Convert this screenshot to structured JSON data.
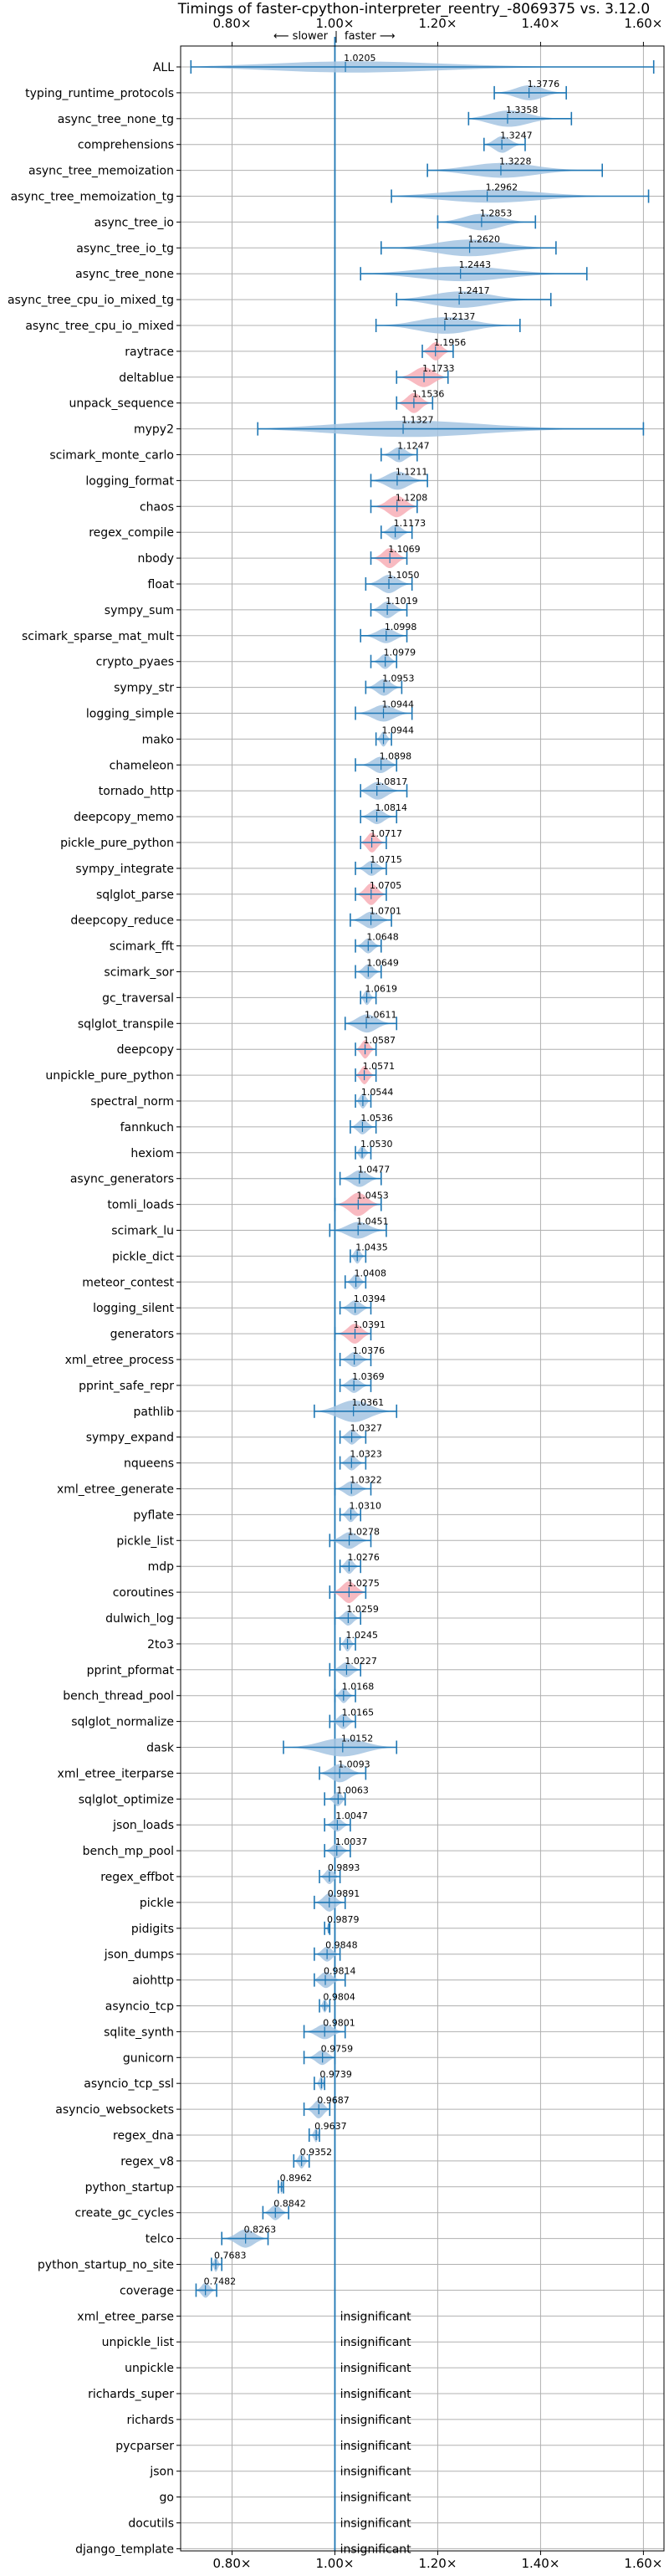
{
  "chart_data": {
    "type": "violin",
    "title": "Timings of faster-cpython-interpreter_reentry_-8069375 vs. 3.12.0",
    "direction_labels": {
      "slower": "⟵ slower",
      "faster": "faster ⟶"
    },
    "xlim": [
      0.7,
      1.64
    ],
    "x_ticks": [
      0.8,
      1.0,
      1.2,
      1.4,
      1.6
    ],
    "x_tick_labels": [
      "0.80×",
      "1.00×",
      "1.20×",
      "1.40×",
      "1.60×"
    ],
    "reference_line": 1.0,
    "grid": true,
    "colors": {
      "normal": "#a4c4e2",
      "highlight": "#f7aeb6",
      "line": "#1f77b4"
    },
    "insignificant_label": "insignificant",
    "benchmarks": [
      {
        "name": "ALL",
        "value": 1.0205,
        "min": 0.72,
        "max": 1.62,
        "w": 0.3
      },
      {
        "name": "typing_runtime_protocols",
        "value": 1.3776,
        "min": 1.31,
        "max": 1.45,
        "w": 0.5
      },
      {
        "name": "async_tree_none_tg",
        "value": 1.3358,
        "min": 1.26,
        "max": 1.46,
        "w": 0.6
      },
      {
        "name": "comprehensions",
        "value": 1.3247,
        "min": 1.29,
        "max": 1.37,
        "w": 0.6
      },
      {
        "name": "async_tree_memoization",
        "value": 1.3228,
        "min": 1.18,
        "max": 1.52,
        "w": 0.5
      },
      {
        "name": "async_tree_memoization_tg",
        "value": 1.2962,
        "min": 1.11,
        "max": 1.61,
        "w": 0.4
      },
      {
        "name": "async_tree_io",
        "value": 1.2853,
        "min": 1.2,
        "max": 1.39,
        "w": 0.6
      },
      {
        "name": "async_tree_io_tg",
        "value": 1.262,
        "min": 1.09,
        "max": 1.43,
        "w": 0.6
      },
      {
        "name": "async_tree_none",
        "value": 1.2443,
        "min": 1.05,
        "max": 1.49,
        "w": 0.5
      },
      {
        "name": "async_tree_cpu_io_mixed_tg",
        "value": 1.2417,
        "min": 1.12,
        "max": 1.42,
        "w": 0.6
      },
      {
        "name": "async_tree_cpu_io_mixed",
        "value": 1.2137,
        "min": 1.08,
        "max": 1.36,
        "w": 0.6
      },
      {
        "name": "raytrace",
        "value": 1.1956,
        "min": 1.17,
        "max": 1.23,
        "w": 0.7,
        "hl": true
      },
      {
        "name": "deltablue",
        "value": 1.1733,
        "min": 1.12,
        "max": 1.22,
        "w": 0.8,
        "hl": true
      },
      {
        "name": "unpack_sequence",
        "value": 1.1536,
        "min": 1.12,
        "max": 1.19,
        "w": 0.8,
        "hl": true
      },
      {
        "name": "mypy2",
        "value": 1.1327,
        "min": 0.85,
        "max": 1.6,
        "w": 0.6
      },
      {
        "name": "scimark_monte_carlo",
        "value": 1.1247,
        "min": 1.09,
        "max": 1.16,
        "w": 0.5
      },
      {
        "name": "logging_format",
        "value": 1.1211,
        "min": 1.07,
        "max": 1.18,
        "w": 0.7
      },
      {
        "name": "chaos",
        "value": 1.1208,
        "min": 1.07,
        "max": 1.16,
        "w": 0.9,
        "hl": true
      },
      {
        "name": "regex_compile",
        "value": 1.1173,
        "min": 1.09,
        "max": 1.15,
        "w": 0.5
      },
      {
        "name": "nbody",
        "value": 1.1069,
        "min": 1.07,
        "max": 1.14,
        "w": 0.8,
        "hl": true
      },
      {
        "name": "float",
        "value": 1.105,
        "min": 1.06,
        "max": 1.15,
        "w": 0.7
      },
      {
        "name": "sympy_sum",
        "value": 1.1019,
        "min": 1.07,
        "max": 1.14,
        "w": 0.6
      },
      {
        "name": "scimark_sparse_mat_mult",
        "value": 1.0998,
        "min": 1.05,
        "max": 1.14,
        "w": 0.5
      },
      {
        "name": "crypto_pyaes",
        "value": 1.0979,
        "min": 1.07,
        "max": 1.12,
        "w": 0.5
      },
      {
        "name": "sympy_str",
        "value": 1.0953,
        "min": 1.06,
        "max": 1.13,
        "w": 0.6
      },
      {
        "name": "logging_simple",
        "value": 1.0944,
        "min": 1.04,
        "max": 1.15,
        "w": 0.6
      },
      {
        "name": "mako",
        "value": 1.0944,
        "min": 1.08,
        "max": 1.11,
        "w": 0.5
      },
      {
        "name": "chameleon",
        "value": 1.0898,
        "min": 1.04,
        "max": 1.12,
        "w": 0.6
      },
      {
        "name": "tornado_http",
        "value": 1.0817,
        "min": 1.05,
        "max": 1.14,
        "w": 0.7
      },
      {
        "name": "deepcopy_memo",
        "value": 1.0814,
        "min": 1.05,
        "max": 1.12,
        "w": 0.5
      },
      {
        "name": "pickle_pure_python",
        "value": 1.0717,
        "min": 1.05,
        "max": 1.1,
        "w": 0.8,
        "hl": true
      },
      {
        "name": "sympy_integrate",
        "value": 1.0715,
        "min": 1.04,
        "max": 1.1,
        "w": 0.5
      },
      {
        "name": "sqlglot_parse",
        "value": 1.0705,
        "min": 1.04,
        "max": 1.1,
        "w": 0.9,
        "hl": true
      },
      {
        "name": "deepcopy_reduce",
        "value": 1.0701,
        "min": 1.03,
        "max": 1.11,
        "w": 0.6
      },
      {
        "name": "scimark_fft",
        "value": 1.0648,
        "min": 1.04,
        "max": 1.09,
        "w": 0.5
      },
      {
        "name": "scimark_sor",
        "value": 1.0649,
        "min": 1.04,
        "max": 1.09,
        "w": 0.5
      },
      {
        "name": "gc_traversal",
        "value": 1.0619,
        "min": 1.05,
        "max": 1.08,
        "w": 0.5
      },
      {
        "name": "sqlglot_transpile",
        "value": 1.0611,
        "min": 1.02,
        "max": 1.12,
        "w": 0.7
      },
      {
        "name": "deepcopy",
        "value": 1.0587,
        "min": 1.04,
        "max": 1.08,
        "w": 0.7,
        "hl": true
      },
      {
        "name": "unpickle_pure_python",
        "value": 1.0571,
        "min": 1.04,
        "max": 1.08,
        "w": 0.7,
        "hl": true
      },
      {
        "name": "spectral_norm",
        "value": 1.0544,
        "min": 1.04,
        "max": 1.07,
        "w": 0.5
      },
      {
        "name": "fannkuch",
        "value": 1.0536,
        "min": 1.03,
        "max": 1.08,
        "w": 0.5
      },
      {
        "name": "hexiom",
        "value": 1.053,
        "min": 1.04,
        "max": 1.07,
        "w": 0.4
      },
      {
        "name": "async_generators",
        "value": 1.0477,
        "min": 1.01,
        "max": 1.09,
        "w": 0.6
      },
      {
        "name": "tomli_loads",
        "value": 1.0453,
        "min": 1.0,
        "max": 1.09,
        "w": 1.0,
        "hl": true
      },
      {
        "name": "scimark_lu",
        "value": 1.0451,
        "min": 0.99,
        "max": 1.1,
        "w": 0.6
      },
      {
        "name": "pickle_dict",
        "value": 1.0435,
        "min": 1.03,
        "max": 1.06,
        "w": 0.5
      },
      {
        "name": "meteor_contest",
        "value": 1.0408,
        "min": 1.02,
        "max": 1.06,
        "w": 0.5
      },
      {
        "name": "logging_silent",
        "value": 1.0394,
        "min": 1.01,
        "max": 1.07,
        "w": 0.5
      },
      {
        "name": "generators",
        "value": 1.0391,
        "min": 1.0,
        "max": 1.07,
        "w": 0.8,
        "hl": true
      },
      {
        "name": "xml_etree_process",
        "value": 1.0376,
        "min": 1.01,
        "max": 1.07,
        "w": 0.5
      },
      {
        "name": "pprint_safe_repr",
        "value": 1.0369,
        "min": 1.01,
        "max": 1.07,
        "w": 0.5
      },
      {
        "name": "pathlib",
        "value": 1.0361,
        "min": 0.96,
        "max": 1.12,
        "w": 0.9
      },
      {
        "name": "sympy_expand",
        "value": 1.0327,
        "min": 1.01,
        "max": 1.06,
        "w": 0.5
      },
      {
        "name": "nqueens",
        "value": 1.0323,
        "min": 1.01,
        "max": 1.06,
        "w": 0.5
      },
      {
        "name": "xml_etree_generate",
        "value": 1.0322,
        "min": 1.0,
        "max": 1.07,
        "w": 0.5
      },
      {
        "name": "pyflate",
        "value": 1.031,
        "min": 1.01,
        "max": 1.05,
        "w": 0.5
      },
      {
        "name": "pickle_list",
        "value": 1.0278,
        "min": 0.99,
        "max": 1.07,
        "w": 0.6
      },
      {
        "name": "mdp",
        "value": 1.0276,
        "min": 1.01,
        "max": 1.05,
        "w": 0.5
      },
      {
        "name": "coroutines",
        "value": 1.0275,
        "min": 0.99,
        "max": 1.06,
        "w": 0.9,
        "hl": true
      },
      {
        "name": "dulwich_log",
        "value": 1.0259,
        "min": 1.0,
        "max": 1.05,
        "w": 0.5
      },
      {
        "name": "2to3",
        "value": 1.0245,
        "min": 1.01,
        "max": 1.04,
        "w": 0.5
      },
      {
        "name": "pprint_pformat",
        "value": 1.0227,
        "min": 0.99,
        "max": 1.05,
        "w": 0.5
      },
      {
        "name": "bench_thread_pool",
        "value": 1.0168,
        "min": 1.0,
        "max": 1.04,
        "w": 0.5
      },
      {
        "name": "sqlglot_normalize",
        "value": 1.0165,
        "min": 0.99,
        "max": 1.04,
        "w": 0.5
      },
      {
        "name": "dask",
        "value": 1.0152,
        "min": 0.9,
        "max": 1.12,
        "w": 0.7
      },
      {
        "name": "xml_etree_iterparse",
        "value": 1.0093,
        "min": 0.97,
        "max": 1.06,
        "w": 0.7
      },
      {
        "name": "sqlglot_optimize",
        "value": 1.0063,
        "min": 0.98,
        "max": 1.02,
        "w": 0.5
      },
      {
        "name": "json_loads",
        "value": 1.0047,
        "min": 0.98,
        "max": 1.03,
        "w": 0.4
      },
      {
        "name": "bench_mp_pool",
        "value": 1.0037,
        "min": 0.98,
        "max": 1.03,
        "w": 0.5
      },
      {
        "name": "regex_effbot",
        "value": 0.9893,
        "min": 0.97,
        "max": 1.01,
        "w": 0.5
      },
      {
        "name": "pickle",
        "value": 0.9891,
        "min": 0.96,
        "max": 1.02,
        "w": 0.7
      },
      {
        "name": "pidigits",
        "value": 0.9879,
        "min": 0.98,
        "max": 0.99,
        "w": 0.3
      },
      {
        "name": "json_dumps",
        "value": 0.9848,
        "min": 0.96,
        "max": 1.01,
        "w": 0.5
      },
      {
        "name": "aiohttp",
        "value": 0.9814,
        "min": 0.96,
        "max": 1.02,
        "w": 0.6
      },
      {
        "name": "asyncio_tcp",
        "value": 0.9804,
        "min": 0.97,
        "max": 0.99,
        "w": 0.4
      },
      {
        "name": "sqlite_synth",
        "value": 0.9801,
        "min": 0.94,
        "max": 1.02,
        "w": 0.5
      },
      {
        "name": "gunicorn",
        "value": 0.9759,
        "min": 0.94,
        "max": 1.0,
        "w": 0.5
      },
      {
        "name": "asyncio_tcp_ssl",
        "value": 0.9739,
        "min": 0.96,
        "max": 0.98,
        "w": 0.5
      },
      {
        "name": "asyncio_websockets",
        "value": 0.9687,
        "min": 0.94,
        "max": 0.99,
        "w": 0.7
      },
      {
        "name": "regex_dna",
        "value": 0.9637,
        "min": 0.95,
        "max": 0.97,
        "w": 0.5
      },
      {
        "name": "regex_v8",
        "value": 0.9352,
        "min": 0.92,
        "max": 0.95,
        "w": 0.5
      },
      {
        "name": "python_startup",
        "value": 0.8962,
        "min": 0.89,
        "max": 0.9,
        "w": 0.5
      },
      {
        "name": "create_gc_cycles",
        "value": 0.8842,
        "min": 0.86,
        "max": 0.91,
        "w": 0.5
      },
      {
        "name": "telco",
        "value": 0.8263,
        "min": 0.78,
        "max": 0.87,
        "w": 0.7
      },
      {
        "name": "python_startup_no_site",
        "value": 0.7683,
        "min": 0.76,
        "max": 0.78,
        "w": 0.5
      },
      {
        "name": "coverage",
        "value": 0.7482,
        "min": 0.73,
        "max": 0.77,
        "w": 0.5
      },
      {
        "name": "xml_etree_parse",
        "insignificant": true
      },
      {
        "name": "unpickle_list",
        "insignificant": true
      },
      {
        "name": "unpickle",
        "insignificant": true
      },
      {
        "name": "richards_super",
        "insignificant": true
      },
      {
        "name": "richards",
        "insignificant": true
      },
      {
        "name": "pycparser",
        "insignificant": true
      },
      {
        "name": "json",
        "insignificant": true
      },
      {
        "name": "go",
        "insignificant": true
      },
      {
        "name": "docutils",
        "insignificant": true
      },
      {
        "name": "django_template",
        "insignificant": true
      }
    ]
  }
}
